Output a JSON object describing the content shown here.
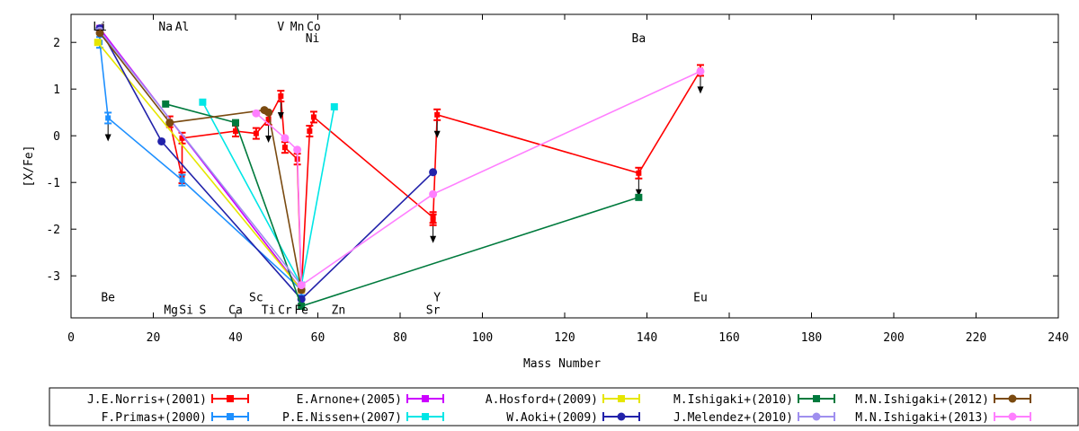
{
  "chart_data": {
    "type": "line",
    "title": "",
    "xlabel": "Mass Number",
    "ylabel": "[X/Fe]",
    "xlim": [
      0,
      240
    ],
    "ylim": [
      -3.9,
      2.6
    ],
    "xticks": [
      0,
      20,
      40,
      60,
      80,
      100,
      120,
      140,
      160,
      180,
      200,
      220,
      240
    ],
    "yticks": [
      -3,
      -2,
      -1,
      0,
      1,
      2
    ],
    "grid": false,
    "legend_position": "bottom",
    "element_labels": [
      {
        "text": "Li",
        "x": 7,
        "y": 2.35
      },
      {
        "text": "Na",
        "x": 23,
        "y": 2.35
      },
      {
        "text": "Al",
        "x": 27,
        "y": 2.35
      },
      {
        "text": "V",
        "x": 51,
        "y": 2.35
      },
      {
        "text": "Mn",
        "x": 55,
        "y": 2.35
      },
      {
        "text": "Co",
        "x": 59,
        "y": 2.35
      },
      {
        "text": "Ni",
        "x": 58.7,
        "y": 2.1
      },
      {
        "text": "Ba",
        "x": 138,
        "y": 2.1
      },
      {
        "text": "Be",
        "x": 9,
        "y": -3.45
      },
      {
        "text": "Sc",
        "x": 45,
        "y": -3.45
      },
      {
        "text": "Y",
        "x": 89,
        "y": -3.45
      },
      {
        "text": "Eu",
        "x": 153,
        "y": -3.45
      },
      {
        "text": "Mg",
        "x": 24.3,
        "y": -3.72
      },
      {
        "text": "Si",
        "x": 28,
        "y": -3.72
      },
      {
        "text": "S",
        "x": 32,
        "y": -3.72
      },
      {
        "text": "Ca",
        "x": 40,
        "y": -3.72
      },
      {
        "text": "Ti",
        "x": 48,
        "y": -3.72
      },
      {
        "text": "Cr",
        "x": 52,
        "y": -3.72
      },
      {
        "text": "Fe",
        "x": 56,
        "y": -3.72
      },
      {
        "text": "Zn",
        "x": 65,
        "y": -3.72
      },
      {
        "text": "Sr",
        "x": 88,
        "y": -3.72
      }
    ],
    "series": [
      {
        "name": "J.E.Norris+(2001)",
        "color": "#ff0000",
        "marker": "bar",
        "x": [
          24,
          27,
          27,
          40,
          45,
          48,
          51,
          52,
          55,
          56,
          58,
          59,
          88,
          88,
          89,
          138,
          153
        ],
        "y": [
          0.3,
          -0.9,
          -0.05,
          0.1,
          0.05,
          0.35,
          0.85,
          -0.25,
          -0.5,
          -3.3,
          0.1,
          0.4,
          -1.75,
          -1.8,
          0.45,
          -0.8,
          1.4
        ],
        "upper_limits": [
          false,
          false,
          false,
          false,
          false,
          true,
          true,
          false,
          false,
          false,
          false,
          false,
          false,
          true,
          true,
          true,
          true
        ]
      },
      {
        "name": "F.Primas+(2000)",
        "color": "#1e90ff",
        "marker": "bar",
        "x": [
          7,
          9,
          27,
          56
        ],
        "y": [
          2.0,
          0.38,
          -0.95,
          -3.3
        ],
        "upper_limits": [
          false,
          true,
          false,
          false
        ]
      },
      {
        "name": "E.Arnone+(2005)",
        "color": "#cc00ff",
        "marker": "square",
        "x": [
          7,
          56
        ],
        "y": [
          2.3,
          -3.3
        ],
        "upper_limits": [
          false,
          false
        ]
      },
      {
        "name": "P.E.Nissen+(2007)",
        "color": "#00e6e6",
        "marker": "square",
        "x": [
          32,
          56,
          64
        ],
        "y": [
          0.72,
          -3.2,
          0.62
        ],
        "upper_limits": [
          false,
          false,
          false
        ]
      },
      {
        "name": "A.Hosford+(2009)",
        "color": "#e6e600",
        "marker": "square",
        "x": [
          6.5,
          56
        ],
        "y": [
          2.0,
          -3.3
        ],
        "upper_limits": [
          false,
          false
        ]
      },
      {
        "name": "W.Aoki+(2009)",
        "color": "#2222aa",
        "marker": "circle",
        "x": [
          7,
          22,
          56,
          88
        ],
        "y": [
          2.3,
          -0.12,
          -3.5,
          -0.78
        ],
        "upper_limits": [
          false,
          false,
          false,
          false
        ]
      },
      {
        "name": "M.Ishigaki+(2010)",
        "color": "#007a3d",
        "marker": "square",
        "x": [
          23,
          40,
          56,
          138
        ],
        "y": [
          0.68,
          0.28,
          -3.65,
          -1.32
        ],
        "upper_limits": [
          false,
          false,
          false,
          false
        ]
      },
      {
        "name": "J.Melendez+(2010)",
        "color": "#9f8fef",
        "marker": "circle",
        "x": [
          7,
          56
        ],
        "y": [
          2.25,
          -3.2
        ],
        "upper_limits": [
          false,
          false
        ]
      },
      {
        "name": "M.N.Ishigaki+(2012)",
        "color": "#7a4a10",
        "marker": "circle",
        "x": [
          7,
          24,
          47,
          48,
          56
        ],
        "y": [
          2.2,
          0.28,
          0.55,
          0.5,
          -3.3
        ],
        "upper_limits": [
          false,
          false,
          false,
          false,
          false
        ]
      },
      {
        "name": "M.N.Ishigaki+(2013)",
        "color": "#ff7fff",
        "marker": "circle",
        "x": [
          45,
          52,
          55,
          56,
          88,
          153
        ],
        "y": [
          0.48,
          -0.05,
          -0.3,
          -3.2,
          -1.25,
          1.38
        ],
        "upper_limits": [
          false,
          false,
          false,
          false,
          false,
          false
        ]
      }
    ]
  }
}
